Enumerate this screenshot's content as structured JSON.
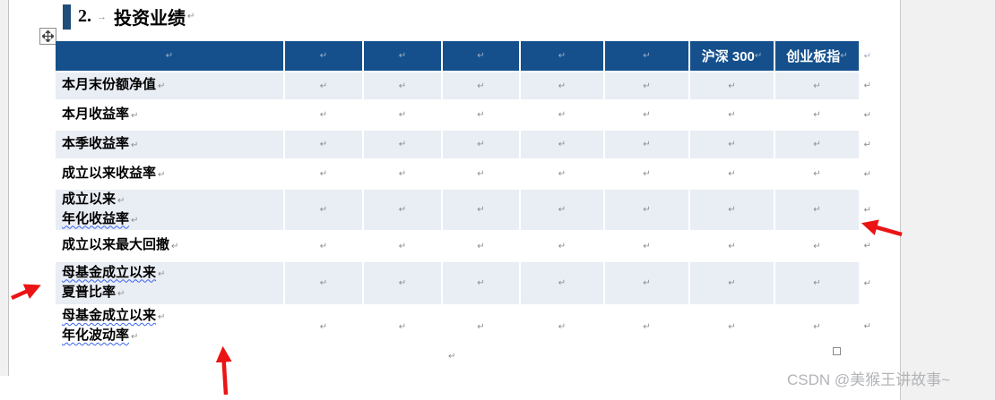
{
  "title": {
    "number": "2.",
    "tab_mark": "→",
    "text": "投资业绩",
    "pilcrow": "↵"
  },
  "formatting_marks": {
    "cell_end_mark": "↵",
    "end_of_row_mark": "↵",
    "below_table_pilcrow": "↵"
  },
  "table": {
    "header_cells": [
      "",
      "",
      "",
      "",
      "",
      "",
      "沪深 300",
      "创业板指"
    ],
    "num_data_columns": 7,
    "rows": [
      {
        "shaded": true,
        "lines": [
          {
            "text": "本月末份额净值",
            "wavy": false
          }
        ]
      },
      {
        "shaded": false,
        "lines": [
          {
            "text": "本月收益率",
            "wavy": false
          }
        ]
      },
      {
        "shaded": true,
        "lines": [
          {
            "text": "本季收益率",
            "wavy": false
          }
        ]
      },
      {
        "shaded": false,
        "lines": [
          {
            "text": "成立以来收益率",
            "wavy": false
          }
        ]
      },
      {
        "shaded": true,
        "lines": [
          {
            "text": "成立以来",
            "wavy": false
          },
          {
            "text": "年化收益率",
            "wavy": true
          }
        ]
      },
      {
        "shaded": false,
        "lines": [
          {
            "text": "成立以来最大回撤",
            "wavy": false
          }
        ]
      },
      {
        "shaded": true,
        "lines": [
          {
            "text": "母基金成立以来",
            "wavy": true
          },
          {
            "text": "夏普比率",
            "wavy": false
          }
        ]
      },
      {
        "shaded": false,
        "lines": [
          {
            "text": "母基金成立以来",
            "wavy": true
          },
          {
            "text": "年化波动率",
            "wavy": true
          }
        ]
      }
    ]
  },
  "annotations": {
    "red_arrow_count": 3
  },
  "watermark": {
    "text": "CSDN @美猴王讲故事~"
  },
  "colors": {
    "header_bg": "#15508C",
    "banded_row_bg": "#E9EDF4",
    "heading_accent": "#1F4E79",
    "annotation_red": "#EB1414",
    "spellcheck_wavy": "#3A64EE",
    "watermark_gray": "#B2B4B7"
  }
}
